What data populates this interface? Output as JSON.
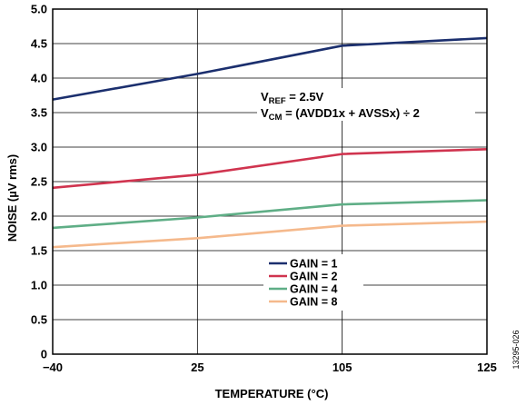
{
  "chart_data": {
    "type": "line",
    "xlabel": "TEMPERATURE (°C)",
    "ylabel": "NOISE (µV rms)",
    "x_categories": [
      "−40",
      "25",
      "105",
      "125"
    ],
    "y_ticks": [
      "0",
      "0.5",
      "1.0",
      "1.5",
      "2.0",
      "2.5",
      "3.0",
      "3.5",
      "4.0",
      "4.5",
      "5.0"
    ],
    "ylim": [
      0,
      5.0
    ],
    "grid": true,
    "legend_position": "lower-center",
    "annotation": {
      "line1_main": "V",
      "line1_sub": "REF",
      "line1_rest": " = 2.5V",
      "line2_main": "V",
      "line2_sub": "CM",
      "line2_rest": " = (AVDD1x + AVSSx) ÷ 2"
    },
    "series": [
      {
        "name": "GAIN = 1",
        "color": "#1b2f6e",
        "values": [
          3.69,
          4.06,
          4.47,
          4.58
        ]
      },
      {
        "name": "GAIN = 2",
        "color": "#d0344f",
        "values": [
          2.41,
          2.6,
          2.9,
          2.97
        ]
      },
      {
        "name": "GAIN = 4",
        "color": "#5fae86",
        "values": [
          1.83,
          1.98,
          2.17,
          2.23
        ]
      },
      {
        "name": "GAIN = 8",
        "color": "#f5b98c",
        "values": [
          1.55,
          1.68,
          1.86,
          1.92
        ]
      }
    ]
  },
  "figure_id": "13295-026"
}
